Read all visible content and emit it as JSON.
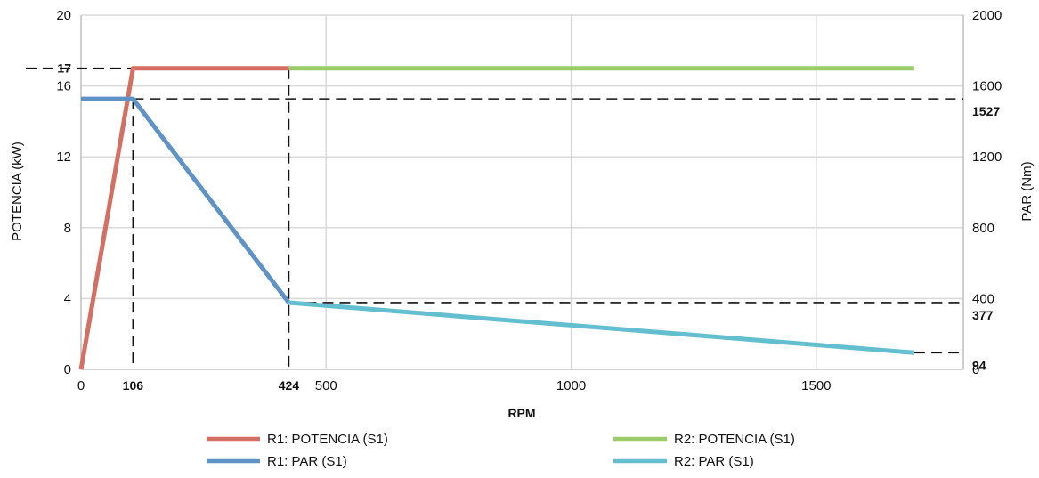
{
  "chart_data": {
    "type": "line",
    "xlabel": "RPM",
    "ylabel_left": "POTENCIA (kW)",
    "ylabel_right": "PAR (Nm)",
    "xlim": [
      0,
      1800
    ],
    "ylim_left": [
      0,
      20
    ],
    "ylim_right": [
      0,
      2000
    ],
    "x_ticks": [
      0,
      500,
      1000,
      1500
    ],
    "y_ticks_left": [
      0,
      4,
      8,
      12,
      16,
      20
    ],
    "y_ticks_right": [
      0,
      400,
      800,
      1200,
      1600,
      2000
    ],
    "grid": true,
    "legend_position": "bottom",
    "series": [
      {
        "name": "R1: POTENCIA (S1)",
        "axis": "left",
        "color": "#d36f63",
        "x": [
          0,
          106,
          424
        ],
        "values": [
          0,
          17,
          17
        ]
      },
      {
        "name": "R2: POTENCIA (S1)",
        "axis": "left",
        "color": "#9ccb6a",
        "x": [
          424,
          1700
        ],
        "values": [
          17,
          17
        ]
      },
      {
        "name": "R1: PAR (S1)",
        "axis": "right",
        "color": "#5f93c6",
        "x": [
          0,
          106,
          424
        ],
        "values": [
          1527,
          1527,
          377
        ]
      },
      {
        "name": "R2: PAR (S1)",
        "axis": "right",
        "color": "#63bfd0",
        "x": [
          424,
          1700
        ],
        "values": [
          377,
          94
        ]
      }
    ],
    "annotations": {
      "x_marks": [
        {
          "value": 106,
          "label": "106"
        },
        {
          "value": 424,
          "label": "424"
        }
      ],
      "left_marks": [
        {
          "value": 17,
          "label": "17",
          "x_end": 424
        }
      ],
      "right_marks": [
        {
          "value": 1527,
          "label": "1527",
          "x_start": 106
        },
        {
          "value": 377,
          "label": "377",
          "x_start": 424
        },
        {
          "value": 94,
          "label": "94",
          "x_start": 1700
        }
      ]
    }
  }
}
